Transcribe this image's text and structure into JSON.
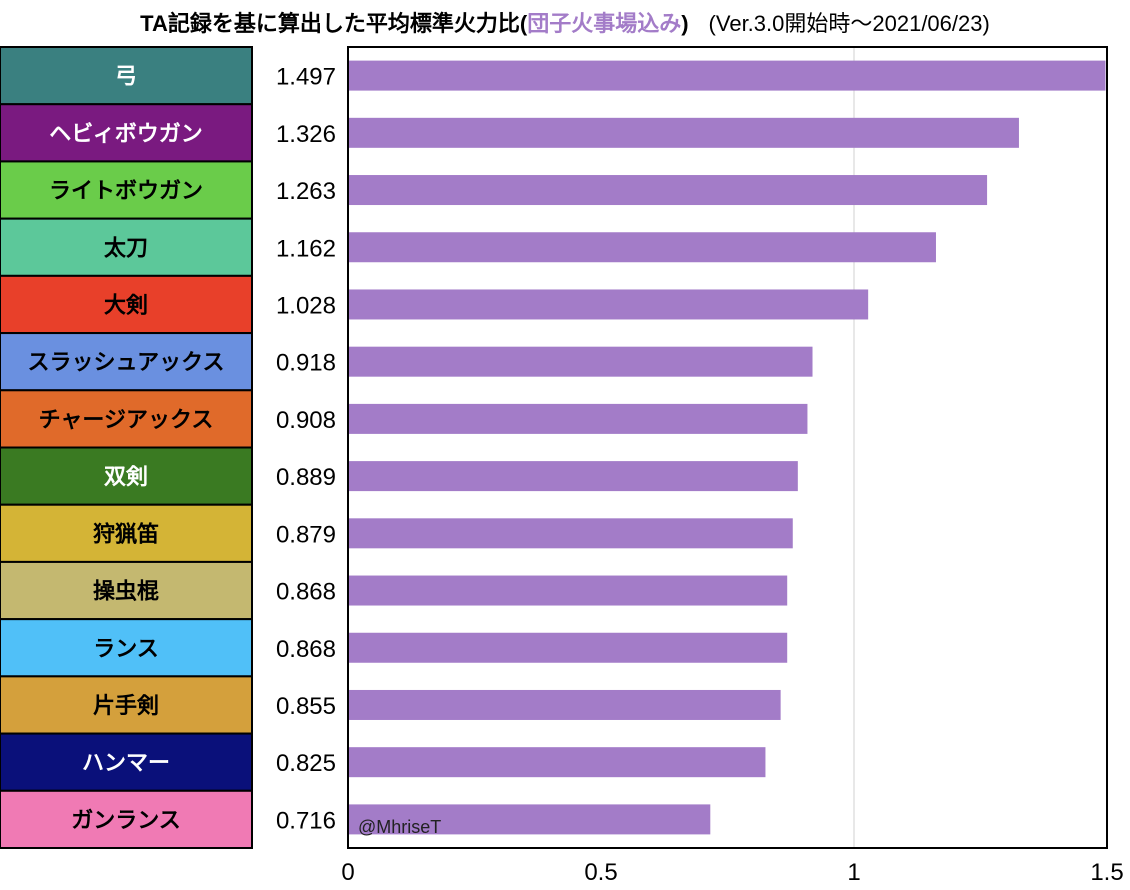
{
  "chart_data": {
    "type": "bar",
    "orientation": "horizontal",
    "title": "TA記録を基に算出した平均標準火力比(",
    "title_highlight": "団子火事場込み",
    "title_close": ")",
    "subtitle": "(Ver.3.0開始時～2021/06/23)",
    "categories": [
      "弓",
      "ヘビィボウガン",
      "ライトボウガン",
      "太刀",
      "大剣",
      "スラッシュアックス",
      "チャージアックス",
      "双剣",
      "狩猟笛",
      "操虫棍",
      "ランス",
      "片手剣",
      "ハンマー",
      "ガンランス"
    ],
    "values": [
      1.497,
      1.326,
      1.263,
      1.162,
      1.028,
      0.918,
      0.908,
      0.889,
      0.879,
      0.868,
      0.868,
      0.855,
      0.825,
      0.716
    ],
    "value_labels": [
      "1.497",
      "1.326",
      "1.263",
      "1.162",
      "1.028",
      "0.918",
      "0.908",
      "0.889",
      "0.879",
      "0.868",
      "0.868",
      "0.855",
      "0.825",
      "0.716"
    ],
    "label_colors": [
      "#3a8080",
      "#7a1a80",
      "#6acc4a",
      "#5cc89a",
      "#e8402a",
      "#6a90e0",
      "#e06a2a",
      "#3a7a22",
      "#d4b436",
      "#c4b870",
      "#50c0f8",
      "#d4a03c",
      "#0a107a",
      "#f07ab4"
    ],
    "label_text_colors": [
      "#ffffff",
      "#ffffff",
      "#000000",
      "#000000",
      "#000000",
      "#000000",
      "#000000",
      "#ffffff",
      "#000000",
      "#000000",
      "#000000",
      "#000000",
      "#ffffff",
      "#000000"
    ],
    "bar_color": "#a37cc8",
    "xlim": [
      0,
      1.5
    ],
    "xticks": [
      "0",
      "0.5",
      "1",
      "1.5"
    ],
    "xtick_values": [
      0,
      0.5,
      1,
      1.5
    ],
    "grid": "vertical at 1",
    "watermark": "@MhriseT"
  }
}
